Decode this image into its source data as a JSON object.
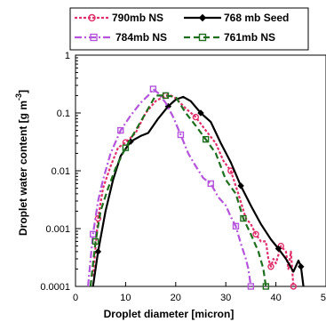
{
  "chart_data": {
    "type": "line",
    "xlabel": "Droplet diameter [micron]",
    "ylabel": "Droplet water content [g m",
    "ylabel_superscript": "-3",
    "ylabel_close": "]",
    "xlim": [
      0,
      50
    ],
    "ylim": [
      0.0001,
      1
    ],
    "yscale": "log",
    "grid": false,
    "legend": "top",
    "x_ticks": [
      "0",
      "10",
      "20",
      "30",
      "40",
      "50"
    ],
    "y_ticks": [
      "0.0001",
      "0.001",
      "0.01",
      "0.1",
      "1"
    ],
    "series": [
      {
        "name": "790mb NS",
        "color": "#e0306a",
        "dash": "3,2",
        "marker": "circle",
        "x": [
          3.5,
          4.5,
          5.5,
          7,
          8.5,
          10,
          12,
          14,
          16,
          18,
          19,
          20,
          22,
          24,
          26,
          28,
          29.5,
          31,
          32.5,
          34,
          35,
          36,
          37,
          38,
          38.5,
          39,
          39.5,
          40,
          40.5,
          41,
          42,
          42.5,
          43,
          43.5
        ],
        "y": [
          0.00015,
          0.0015,
          0.005,
          0.012,
          0.025,
          0.031,
          0.045,
          0.1,
          0.16,
          0.2,
          0.2,
          0.18,
          0.12,
          0.085,
          0.05,
          0.03,
          0.015,
          0.01,
          0.004,
          0.0015,
          0.0012,
          0.0008,
          0.0006,
          0.0006,
          0.0003,
          0.00022,
          0.0003,
          0.00025,
          0.00035,
          0.0005,
          0.0004,
          0.0002,
          0.0004,
          0.0001
        ]
      },
      {
        "name": "768 mb Seed",
        "color": "#000000",
        "dash": "",
        "marker": "diamond",
        "x": [
          3.5,
          4.5,
          6,
          7.5,
          9,
          11,
          13,
          14.5,
          16.5,
          18.5,
          20,
          21.5,
          23,
          25,
          27,
          29,
          31,
          33,
          35,
          37,
          39,
          40.5,
          42,
          43.5,
          44.5,
          45,
          45.5
        ],
        "y": [
          0.0001,
          0.0004,
          0.002,
          0.007,
          0.018,
          0.032,
          0.04,
          0.045,
          0.08,
          0.13,
          0.17,
          0.19,
          0.16,
          0.1,
          0.07,
          0.03,
          0.014,
          0.0055,
          0.0025,
          0.0012,
          0.00065,
          0.00045,
          0.0003,
          0.00018,
          0.00028,
          0.00022,
          0.0001
        ]
      },
      {
        "name": "784mb NS",
        "color": "#b455dc",
        "dash": "8,3,2,3",
        "marker": "square",
        "x": [
          2.5,
          3.5,
          4.5,
          5.5,
          7,
          9,
          11,
          13,
          14.5,
          15.5,
          16.5,
          18,
          19.5,
          21,
          22.5,
          24,
          25.5,
          27,
          28.5,
          30,
          31,
          32,
          33,
          34,
          34.5,
          35
        ],
        "y": [
          0.0001,
          0.0008,
          0.003,
          0.007,
          0.02,
          0.05,
          0.09,
          0.15,
          0.2,
          0.26,
          0.22,
          0.15,
          0.085,
          0.042,
          0.02,
          0.012,
          0.0075,
          0.006,
          0.0035,
          0.0025,
          0.0016,
          0.0011,
          0.00055,
          0.0003,
          0.0002,
          0.0001
        ]
      },
      {
        "name": "761mb NS",
        "color": "#1e6e1e",
        "dash": "7,4",
        "marker": "square",
        "x": [
          3,
          4,
          5,
          6.5,
          8,
          10,
          12,
          14,
          16,
          18,
          20,
          22,
          24,
          26,
          28,
          30,
          32,
          33.5,
          35,
          36.5,
          37.5,
          38
        ],
        "y": [
          0.0001,
          0.0006,
          0.002,
          0.005,
          0.011,
          0.025,
          0.05,
          0.1,
          0.2,
          0.2,
          0.19,
          0.1,
          0.06,
          0.035,
          0.02,
          0.007,
          0.004,
          0.0015,
          0.0008,
          0.0004,
          0.0002,
          0.0001
        ]
      }
    ]
  }
}
